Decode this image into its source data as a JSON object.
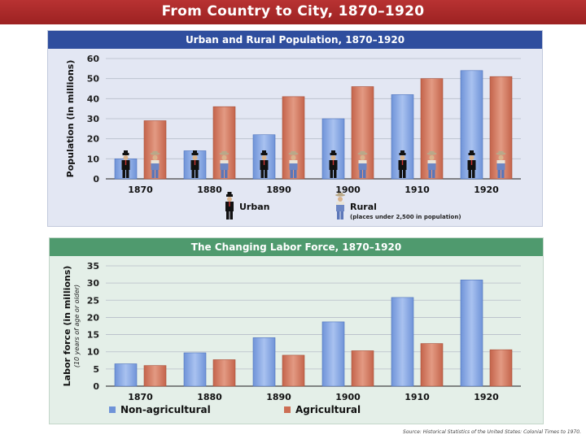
{
  "page": {
    "title": "From Country to City, 1870–1920",
    "source": "Source: Historical Statistics of the United States: Colonial Times to 1970."
  },
  "chart_data": [
    {
      "type": "bar",
      "title": "Urban and Rural Population, 1870–1920",
      "categories": [
        "1870",
        "1880",
        "1890",
        "1900",
        "1910",
        "1920"
      ],
      "series": [
        {
          "name": "Urban",
          "values": [
            10,
            14,
            22,
            30,
            42,
            54
          ],
          "color": "#6f93d8"
        },
        {
          "name": "Rural",
          "values": [
            29,
            36,
            41,
            46,
            50,
            51
          ],
          "color": "#cc6e54"
        }
      ],
      "ylabel": "Population (in millions)",
      "ylim": [
        0,
        60
      ],
      "yticks": [
        "0",
        "10",
        "20",
        "30",
        "40",
        "50",
        "60"
      ],
      "legend_note": "(places under 2,500 in population)",
      "grid": true,
      "legend": "bottom"
    },
    {
      "type": "bar",
      "title": "The Changing Labor Force, 1870–1920",
      "categories": [
        "1870",
        "1880",
        "1890",
        "1900",
        "1910",
        "1920"
      ],
      "series": [
        {
          "name": "Non-agricultural",
          "values": [
            6.5,
            9.7,
            14.1,
            18.7,
            25.8,
            30.9
          ],
          "color": "#6f93d8"
        },
        {
          "name": "Agricultural",
          "values": [
            6.0,
            7.7,
            9.0,
            10.3,
            12.4,
            10.6
          ],
          "color": "#cc6e54"
        }
      ],
      "ylabel": "Labor force (in millions)",
      "ylabel_sub": "(10 years of age or older)",
      "ylim": [
        0,
        35
      ],
      "yticks": [
        "0",
        "5",
        "10",
        "15",
        "20",
        "25",
        "30",
        "35"
      ],
      "grid": true,
      "legend": "bottom"
    }
  ]
}
